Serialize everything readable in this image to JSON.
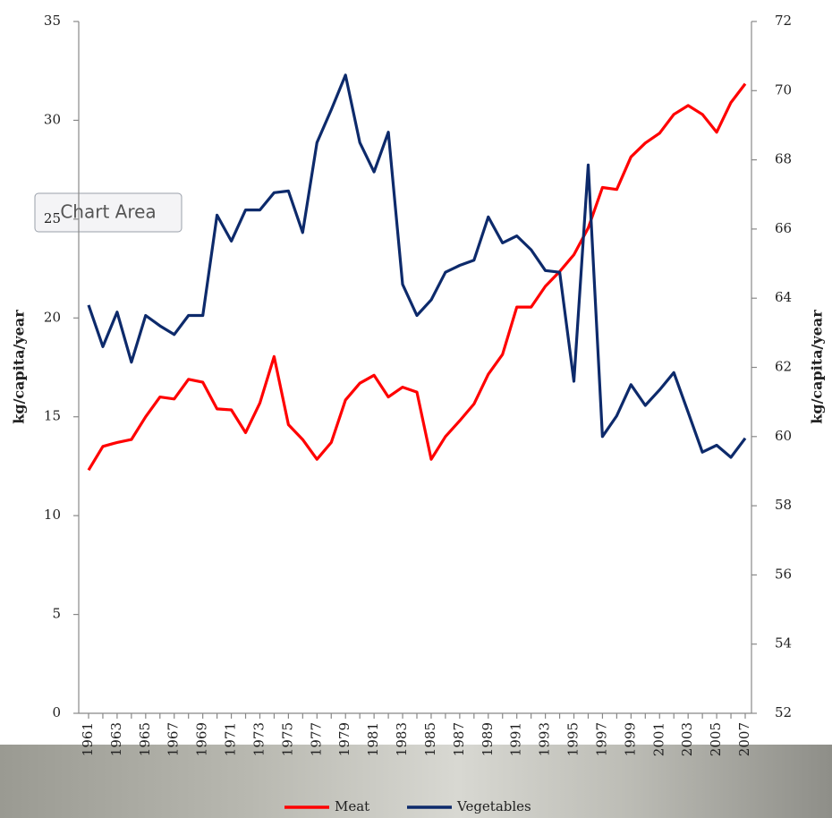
{
  "chart_data": {
    "type": "line",
    "tooltip": "Chart Area",
    "ylabel": "kg/capita/year",
    "y2label": "kg/capita/year",
    "categories": [
      "1961",
      null,
      "1963",
      null,
      "1965",
      null,
      "1967",
      null,
      "1969",
      null,
      "1971",
      null,
      "1973",
      null,
      "1975",
      null,
      "1977",
      null,
      "1979",
      null,
      "1981",
      null,
      "1983",
      null,
      "1985",
      null,
      "1987",
      null,
      "1989",
      null,
      "1991",
      null,
      "1993",
      null,
      "1995",
      null,
      "1997",
      null,
      "1999",
      null,
      "2001",
      null,
      "2003",
      null,
      "2005",
      null,
      "2007"
    ],
    "series": [
      {
        "name": "Meat",
        "color": "#ff0000",
        "axis": "y",
        "values": [
          12.3,
          13.5,
          13.7,
          13.85,
          15.0,
          16.0,
          15.9,
          16.9,
          16.75,
          15.4,
          15.35,
          14.2,
          15.7,
          18.05,
          14.6,
          13.85,
          12.85,
          13.7,
          15.85,
          16.7,
          17.1,
          16.0,
          16.5,
          16.25,
          12.85,
          14.0,
          14.8,
          15.65,
          17.15,
          18.15,
          20.55,
          20.55,
          21.6,
          22.35,
          23.2,
          24.55,
          26.6,
          26.5,
          28.15,
          28.85,
          29.35,
          30.3,
          30.75,
          30.3,
          29.4,
          30.9,
          31.85
        ]
      },
      {
        "name": "Vegetables",
        "color": "#0d2a6b",
        "axis": "y2",
        "values": [
          63.8,
          62.6,
          63.6,
          62.15,
          63.5,
          63.2,
          62.95,
          63.5,
          63.5,
          66.4,
          65.65,
          66.55,
          66.55,
          67.05,
          67.1,
          65.9,
          68.5,
          69.45,
          70.45,
          68.5,
          67.65,
          68.8,
          64.4,
          63.5,
          63.95,
          64.75,
          64.95,
          65.1,
          66.35,
          65.6,
          65.8,
          65.4,
          64.8,
          64.75,
          61.6,
          67.85,
          60.0,
          60.6,
          61.5,
          60.9,
          61.35,
          61.85,
          60.7,
          59.55,
          59.75,
          59.4,
          59.95
        ]
      }
    ],
    "ylim": [
      0,
      35
    ],
    "yticks": [
      0,
      5,
      10,
      15,
      20,
      25,
      30,
      35
    ],
    "y2lim": [
      52,
      72
    ],
    "y2ticks": [
      52,
      54,
      56,
      58,
      60,
      62,
      64,
      66,
      68,
      70,
      72
    ],
    "legend": "bottom"
  }
}
